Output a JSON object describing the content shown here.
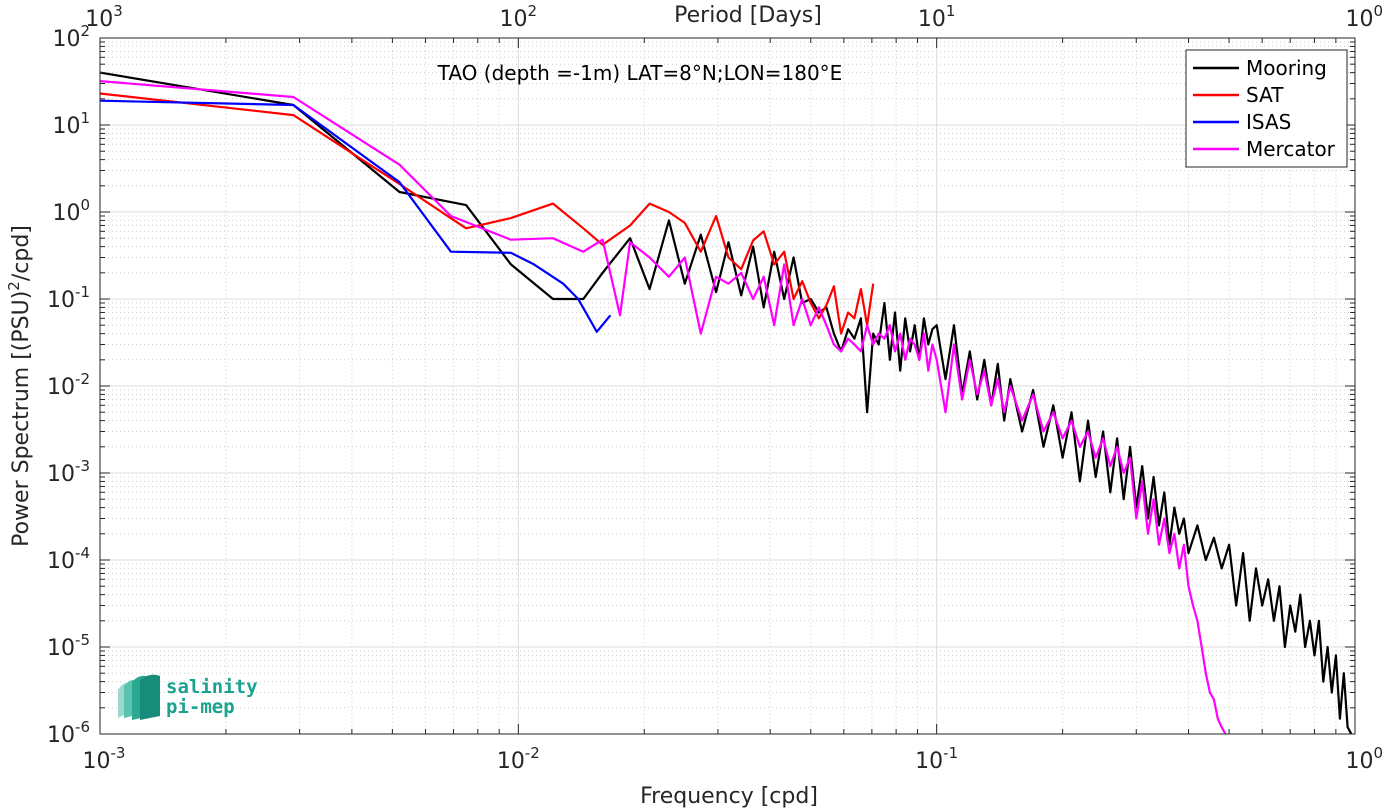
{
  "chart_data": {
    "type": "line",
    "title": "TAO (depth =-1m) LAT=8°N;LON=180°E",
    "xlabel": "Frequency [cpd]",
    "ylabel": "Power Spectrum [(PSU)",
    "ylabel_sup": "2",
    "ylabel_tail": "/cpd]",
    "top_xlabel": "Period [Days]",
    "xscale": "log",
    "yscale": "log",
    "xlim": [
      0.001,
      1
    ],
    "ylim": [
      1e-06,
      100
    ],
    "grid": true,
    "legend_position": "top-right",
    "x_ticks": [
      {
        "value": 0.001,
        "base": "10",
        "exp": "-3"
      },
      {
        "value": 0.01,
        "base": "10",
        "exp": "-2"
      },
      {
        "value": 0.1,
        "base": "10",
        "exp": "-1"
      },
      {
        "value": 1,
        "base": "10",
        "exp": "0"
      }
    ],
    "top_ticks": [
      {
        "period": 1000,
        "base": "10",
        "exp": "3"
      },
      {
        "period": 100,
        "base": "10",
        "exp": "2"
      },
      {
        "period": 10,
        "base": "10",
        "exp": "1"
      },
      {
        "period": 1,
        "base": "10",
        "exp": "0"
      }
    ],
    "y_ticks": [
      {
        "value": 100,
        "base": "10",
        "exp": "2"
      },
      {
        "value": 10,
        "base": "10",
        "exp": "1"
      },
      {
        "value": 1,
        "base": "10",
        "exp": "0"
      },
      {
        "value": 0.1,
        "base": "10",
        "exp": "-1"
      },
      {
        "value": 0.01,
        "base": "10",
        "exp": "-2"
      },
      {
        "value": 0.001,
        "base": "10",
        "exp": "-3"
      },
      {
        "value": 0.0001,
        "base": "10",
        "exp": "-4"
      },
      {
        "value": 1e-05,
        "base": "10",
        "exp": "-5"
      },
      {
        "value": 1e-06,
        "base": "10",
        "exp": "-6"
      }
    ],
    "series": [
      {
        "name": "Mooring",
        "color": "#000000",
        "x": [
          0.001,
          0.0029,
          0.0052,
          0.0075,
          0.0096,
          0.0121,
          0.0143,
          0.0159,
          0.0185,
          0.0206,
          0.0229,
          0.025,
          0.0273,
          0.0297,
          0.0318,
          0.0341,
          0.0364,
          0.0386,
          0.0409,
          0.0432,
          0.0455,
          0.0477,
          0.05,
          0.0523,
          0.0545,
          0.0568,
          0.0591,
          0.0614,
          0.0636,
          0.0659,
          0.0682,
          0.0705,
          0.0727,
          0.075,
          0.0773,
          0.0795,
          0.0818,
          0.0841,
          0.0864,
          0.0886,
          0.0909,
          0.0932,
          0.0955,
          0.0977,
          0.1,
          0.105,
          0.11,
          0.115,
          0.12,
          0.125,
          0.13,
          0.135,
          0.14,
          0.145,
          0.15,
          0.16,
          0.17,
          0.18,
          0.19,
          0.2,
          0.21,
          0.22,
          0.23,
          0.24,
          0.25,
          0.26,
          0.27,
          0.28,
          0.29,
          0.3,
          0.31,
          0.32,
          0.33,
          0.34,
          0.35,
          0.36,
          0.37,
          0.38,
          0.39,
          0.4,
          0.42,
          0.44,
          0.46,
          0.48,
          0.5,
          0.52,
          0.54,
          0.56,
          0.58,
          0.6,
          0.62,
          0.64,
          0.66,
          0.68,
          0.7,
          0.72,
          0.74,
          0.76,
          0.78,
          0.8,
          0.82,
          0.84,
          0.86,
          0.88,
          0.9,
          0.92,
          0.94,
          0.96,
          0.98
        ],
        "y": [
          40,
          17,
          1.7,
          1.2,
          0.25,
          0.1,
          0.1,
          0.2,
          0.5,
          0.13,
          0.8,
          0.15,
          0.55,
          0.12,
          0.45,
          0.11,
          0.4,
          0.08,
          0.35,
          0.1,
          0.3,
          0.09,
          0.1,
          0.07,
          0.08,
          0.04,
          0.025,
          0.045,
          0.035,
          0.06,
          0.005,
          0.04,
          0.03,
          0.09,
          0.02,
          0.07,
          0.015,
          0.06,
          0.025,
          0.05,
          0.02,
          0.06,
          0.03,
          0.045,
          0.05,
          0.012,
          0.05,
          0.008,
          0.025,
          0.007,
          0.02,
          0.006,
          0.018,
          0.004,
          0.012,
          0.003,
          0.009,
          0.002,
          0.006,
          0.0015,
          0.005,
          0.0008,
          0.004,
          0.0009,
          0.003,
          0.0006,
          0.0025,
          0.0005,
          0.002,
          0.0004,
          0.0012,
          0.0003,
          0.0009,
          0.00025,
          0.0006,
          0.00015,
          0.0004,
          0.0002,
          0.0003,
          0.00012,
          0.00025,
          0.0001,
          0.00018,
          8e-05,
          0.00015,
          3e-05,
          0.00012,
          2e-05,
          8e-05,
          3e-05,
          6e-05,
          2e-05,
          5e-05,
          1e-05,
          3e-05,
          1.5e-05,
          4e-05,
          1e-05,
          2e-05,
          8e-06,
          2e-05,
          4e-06,
          1e-05,
          3e-06,
          8e-06,
          1.5e-06,
          5e-06,
          1.2e-06,
          1e-06
        ]
      },
      {
        "name": "SAT",
        "color": "#ff0000",
        "x": [
          0.001,
          0.0029,
          0.0052,
          0.0075,
          0.0096,
          0.0121,
          0.0143,
          0.0159,
          0.0185,
          0.0206,
          0.0229,
          0.025,
          0.0273,
          0.0297,
          0.0318,
          0.0341,
          0.0364,
          0.0386,
          0.0409,
          0.0432,
          0.0455,
          0.0477,
          0.05,
          0.0523,
          0.0545,
          0.0568,
          0.0591,
          0.0614,
          0.0636,
          0.0659,
          0.0682,
          0.0705
        ],
        "y": [
          23,
          13,
          2.1,
          0.65,
          0.85,
          1.25,
          0.65,
          0.42,
          0.7,
          1.25,
          1.0,
          0.75,
          0.35,
          0.9,
          0.3,
          0.22,
          0.47,
          0.6,
          0.25,
          0.35,
          0.1,
          0.16,
          0.09,
          0.06,
          0.085,
          0.14,
          0.04,
          0.07,
          0.06,
          0.13,
          0.05,
          0.15
        ]
      },
      {
        "name": "ISAS",
        "color": "#0000ff",
        "x": [
          0.001,
          0.0029,
          0.0052,
          0.0069,
          0.0096,
          0.0109,
          0.0128,
          0.0139,
          0.0154,
          0.0166
        ],
        "y": [
          19,
          17,
          2.2,
          0.35,
          0.34,
          0.25,
          0.15,
          0.1,
          0.042,
          0.065
        ]
      },
      {
        "name": "Mercator",
        "color": "#ff00ff",
        "x": [
          0.001,
          0.0029,
          0.0052,
          0.0069,
          0.0096,
          0.0121,
          0.0143,
          0.0159,
          0.0175,
          0.0185,
          0.0206,
          0.0229,
          0.025,
          0.0273,
          0.0297,
          0.0318,
          0.0341,
          0.0364,
          0.0386,
          0.0409,
          0.0432,
          0.0455,
          0.0477,
          0.05,
          0.0523,
          0.0545,
          0.0568,
          0.0591,
          0.0614,
          0.0636,
          0.0659,
          0.0682,
          0.0705,
          0.0727,
          0.075,
          0.0773,
          0.0795,
          0.0818,
          0.0841,
          0.0864,
          0.0886,
          0.0909,
          0.0932,
          0.0955,
          0.0977,
          0.1,
          0.105,
          0.11,
          0.115,
          0.12,
          0.125,
          0.13,
          0.135,
          0.14,
          0.145,
          0.15,
          0.16,
          0.17,
          0.18,
          0.19,
          0.2,
          0.21,
          0.22,
          0.23,
          0.24,
          0.25,
          0.26,
          0.27,
          0.28,
          0.29,
          0.3,
          0.31,
          0.32,
          0.33,
          0.34,
          0.35,
          0.36,
          0.37,
          0.38,
          0.39,
          0.4,
          0.41,
          0.42,
          0.43,
          0.44,
          0.45,
          0.46,
          0.47,
          0.48,
          0.49
        ],
        "y": [
          32,
          21,
          3.5,
          0.9,
          0.48,
          0.5,
          0.35,
          0.48,
          0.065,
          0.45,
          0.3,
          0.18,
          0.3,
          0.04,
          0.18,
          0.15,
          0.2,
          0.1,
          0.18,
          0.05,
          0.25,
          0.05,
          0.1,
          0.05,
          0.08,
          0.05,
          0.03,
          0.025,
          0.035,
          0.03,
          0.025,
          0.05,
          0.03,
          0.04,
          0.035,
          0.05,
          0.025,
          0.04,
          0.02,
          0.035,
          0.03,
          0.02,
          0.04,
          0.015,
          0.03,
          0.02,
          0.005,
          0.03,
          0.007,
          0.02,
          0.008,
          0.015,
          0.006,
          0.012,
          0.005,
          0.01,
          0.004,
          0.008,
          0.003,
          0.005,
          0.0025,
          0.004,
          0.002,
          0.003,
          0.0015,
          0.0025,
          0.0012,
          0.002,
          0.001,
          0.0015,
          0.0003,
          0.0008,
          0.0002,
          0.0005,
          0.00015,
          0.0003,
          0.00012,
          0.0002,
          8e-05,
          0.00015,
          5e-05,
          3e-05,
          2e-05,
          1e-05,
          5e-06,
          3e-06,
          2.5e-06,
          1.5e-06,
          1.2e-06,
          1e-06
        ]
      }
    ]
  },
  "logo": {
    "line1": "salinity",
    "line2": "pi-mep",
    "color": "#1aa38f"
  }
}
